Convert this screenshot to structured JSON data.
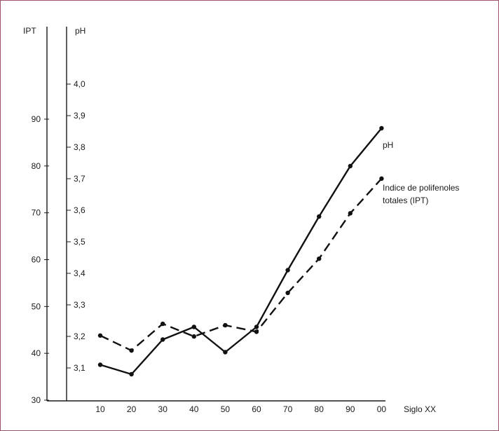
{
  "chart_data": {
    "type": "line",
    "xlabel": "Siglo XX",
    "categories": [
      "10",
      "20",
      "30",
      "40",
      "50",
      "60",
      "70",
      "80",
      "90",
      "00"
    ],
    "left_axis": {
      "label": "IPT",
      "ticks": [
        "30",
        "40",
        "50",
        "60",
        "70",
        "80",
        "90"
      ],
      "ylim": [
        30,
        90
      ]
    },
    "right_axis": {
      "label": "pH",
      "ticks": [
        "3,1",
        "3,2",
        "3,3",
        "3,4",
        "3,5",
        "3,6",
        "3,7",
        "3,8",
        "3,9",
        "4,0"
      ],
      "ylim": [
        3.0,
        4.0
      ]
    },
    "series": [
      {
        "name": "pH",
        "axis": "right",
        "style": "solid",
        "values": [
          3.11,
          3.08,
          3.19,
          3.23,
          3.15,
          3.23,
          3.41,
          3.58,
          3.74,
          3.86
        ]
      },
      {
        "name": "Indice de polifenoles totales (IPT)",
        "axis": "left",
        "style": "dashed",
        "values": [
          43.8,
          40.6,
          46.3,
          43.6,
          46.0,
          44.6,
          52.9,
          60.2,
          69.9,
          77.3
        ]
      }
    ],
    "legend": [
      "pH",
      "Indice de polifenoles",
      "totales (IPT)"
    ],
    "grid": false
  }
}
